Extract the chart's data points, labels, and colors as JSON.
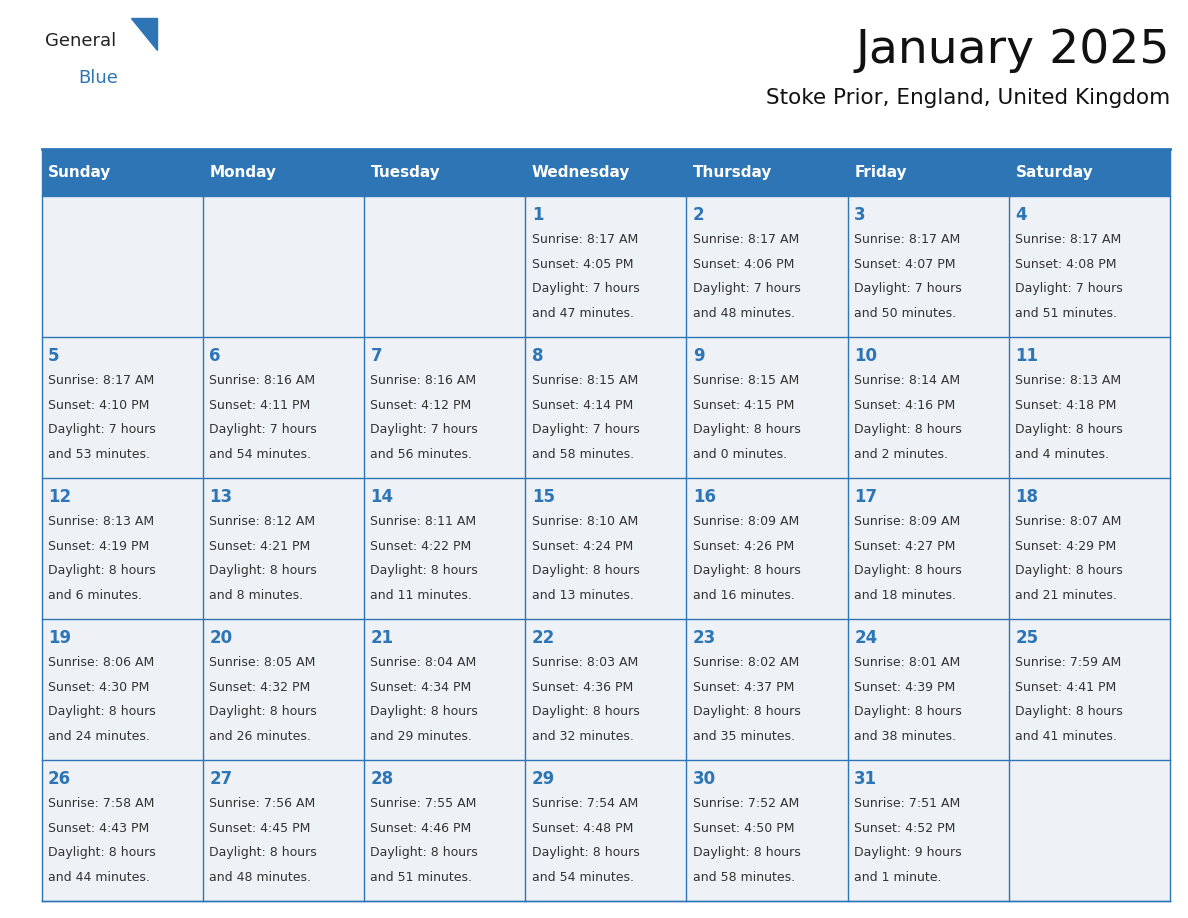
{
  "title": "January 2025",
  "subtitle": "Stoke Prior, England, United Kingdom",
  "header_bg_color": "#2e75b6",
  "header_text_color": "#ffffff",
  "cell_bg_color": "#eef2f7",
  "cell_bg_white": "#ffffff",
  "cell_border_color": "#2e75b6",
  "day_number_color": "#2e75b6",
  "cell_text_color": "#333333",
  "days_of_week": [
    "Sunday",
    "Monday",
    "Tuesday",
    "Wednesday",
    "Thursday",
    "Friday",
    "Saturday"
  ],
  "calendar_data": [
    [
      {
        "day": "",
        "sunrise": "",
        "sunset": "",
        "daylight1": "",
        "daylight2": ""
      },
      {
        "day": "",
        "sunrise": "",
        "sunset": "",
        "daylight1": "",
        "daylight2": ""
      },
      {
        "day": "",
        "sunrise": "",
        "sunset": "",
        "daylight1": "",
        "daylight2": ""
      },
      {
        "day": "1",
        "sunrise": "8:17 AM",
        "sunset": "4:05 PM",
        "daylight1": "7 hours",
        "daylight2": "and 47 minutes."
      },
      {
        "day": "2",
        "sunrise": "8:17 AM",
        "sunset": "4:06 PM",
        "daylight1": "7 hours",
        "daylight2": "and 48 minutes."
      },
      {
        "day": "3",
        "sunrise": "8:17 AM",
        "sunset": "4:07 PM",
        "daylight1": "7 hours",
        "daylight2": "and 50 minutes."
      },
      {
        "day": "4",
        "sunrise": "8:17 AM",
        "sunset": "4:08 PM",
        "daylight1": "7 hours",
        "daylight2": "and 51 minutes."
      }
    ],
    [
      {
        "day": "5",
        "sunrise": "8:17 AM",
        "sunset": "4:10 PM",
        "daylight1": "7 hours",
        "daylight2": "and 53 minutes."
      },
      {
        "day": "6",
        "sunrise": "8:16 AM",
        "sunset": "4:11 PM",
        "daylight1": "7 hours",
        "daylight2": "and 54 minutes."
      },
      {
        "day": "7",
        "sunrise": "8:16 AM",
        "sunset": "4:12 PM",
        "daylight1": "7 hours",
        "daylight2": "and 56 minutes."
      },
      {
        "day": "8",
        "sunrise": "8:15 AM",
        "sunset": "4:14 PM",
        "daylight1": "7 hours",
        "daylight2": "and 58 minutes."
      },
      {
        "day": "9",
        "sunrise": "8:15 AM",
        "sunset": "4:15 PM",
        "daylight1": "8 hours",
        "daylight2": "and 0 minutes."
      },
      {
        "day": "10",
        "sunrise": "8:14 AM",
        "sunset": "4:16 PM",
        "daylight1": "8 hours",
        "daylight2": "and 2 minutes."
      },
      {
        "day": "11",
        "sunrise": "8:13 AM",
        "sunset": "4:18 PM",
        "daylight1": "8 hours",
        "daylight2": "and 4 minutes."
      }
    ],
    [
      {
        "day": "12",
        "sunrise": "8:13 AM",
        "sunset": "4:19 PM",
        "daylight1": "8 hours",
        "daylight2": "and 6 minutes."
      },
      {
        "day": "13",
        "sunrise": "8:12 AM",
        "sunset": "4:21 PM",
        "daylight1": "8 hours",
        "daylight2": "and 8 minutes."
      },
      {
        "day": "14",
        "sunrise": "8:11 AM",
        "sunset": "4:22 PM",
        "daylight1": "8 hours",
        "daylight2": "and 11 minutes."
      },
      {
        "day": "15",
        "sunrise": "8:10 AM",
        "sunset": "4:24 PM",
        "daylight1": "8 hours",
        "daylight2": "and 13 minutes."
      },
      {
        "day": "16",
        "sunrise": "8:09 AM",
        "sunset": "4:26 PM",
        "daylight1": "8 hours",
        "daylight2": "and 16 minutes."
      },
      {
        "day": "17",
        "sunrise": "8:09 AM",
        "sunset": "4:27 PM",
        "daylight1": "8 hours",
        "daylight2": "and 18 minutes."
      },
      {
        "day": "18",
        "sunrise": "8:07 AM",
        "sunset": "4:29 PM",
        "daylight1": "8 hours",
        "daylight2": "and 21 minutes."
      }
    ],
    [
      {
        "day": "19",
        "sunrise": "8:06 AM",
        "sunset": "4:30 PM",
        "daylight1": "8 hours",
        "daylight2": "and 24 minutes."
      },
      {
        "day": "20",
        "sunrise": "8:05 AM",
        "sunset": "4:32 PM",
        "daylight1": "8 hours",
        "daylight2": "and 26 minutes."
      },
      {
        "day": "21",
        "sunrise": "8:04 AM",
        "sunset": "4:34 PM",
        "daylight1": "8 hours",
        "daylight2": "and 29 minutes."
      },
      {
        "day": "22",
        "sunrise": "8:03 AM",
        "sunset": "4:36 PM",
        "daylight1": "8 hours",
        "daylight2": "and 32 minutes."
      },
      {
        "day": "23",
        "sunrise": "8:02 AM",
        "sunset": "4:37 PM",
        "daylight1": "8 hours",
        "daylight2": "and 35 minutes."
      },
      {
        "day": "24",
        "sunrise": "8:01 AM",
        "sunset": "4:39 PM",
        "daylight1": "8 hours",
        "daylight2": "and 38 minutes."
      },
      {
        "day": "25",
        "sunrise": "7:59 AM",
        "sunset": "4:41 PM",
        "daylight1": "8 hours",
        "daylight2": "and 41 minutes."
      }
    ],
    [
      {
        "day": "26",
        "sunrise": "7:58 AM",
        "sunset": "4:43 PM",
        "daylight1": "8 hours",
        "daylight2": "and 44 minutes."
      },
      {
        "day": "27",
        "sunrise": "7:56 AM",
        "sunset": "4:45 PM",
        "daylight1": "8 hours",
        "daylight2": "and 48 minutes."
      },
      {
        "day": "28",
        "sunrise": "7:55 AM",
        "sunset": "4:46 PM",
        "daylight1": "8 hours",
        "daylight2": "and 51 minutes."
      },
      {
        "day": "29",
        "sunrise": "7:54 AM",
        "sunset": "4:48 PM",
        "daylight1": "8 hours",
        "daylight2": "and 54 minutes."
      },
      {
        "day": "30",
        "sunrise": "7:52 AM",
        "sunset": "4:50 PM",
        "daylight1": "8 hours",
        "daylight2": "and 58 minutes."
      },
      {
        "day": "31",
        "sunrise": "7:51 AM",
        "sunset": "4:52 PM",
        "daylight1": "9 hours",
        "daylight2": "and 1 minute."
      },
      {
        "day": "",
        "sunrise": "",
        "sunset": "",
        "daylight1": "",
        "daylight2": ""
      }
    ]
  ],
  "logo_general_color": "#222222",
  "logo_blue_color": "#2e75b6",
  "logo_triangle_color": "#2e75b6",
  "fig_width": 11.88,
  "fig_height": 9.18,
  "dpi": 100
}
